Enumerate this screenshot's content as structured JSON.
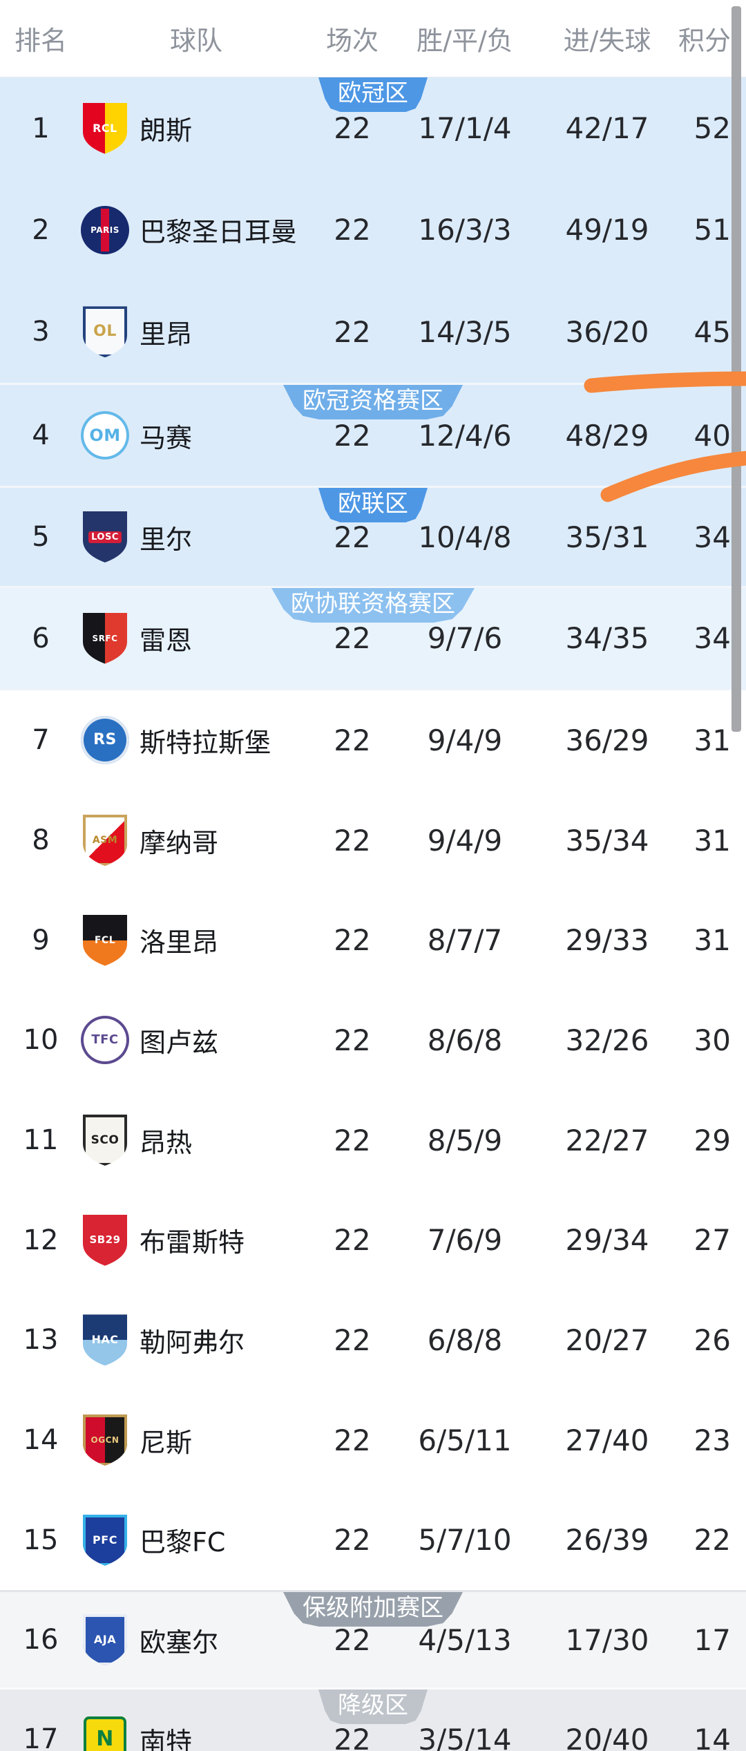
{
  "table": {
    "headers": {
      "rank": "排名",
      "team": "球队",
      "played": "场次",
      "wdl": "胜/平/负",
      "goals": "进/失球",
      "points": "积分"
    },
    "zones": [
      {
        "badge": {
          "label": "欧冠区",
          "color": "#4d97e5"
        },
        "bg": "#dcebfa",
        "divider": null,
        "rows": [
          {
            "rank": "1",
            "team": "朗斯",
            "played": "22",
            "wdl": "17/1/4",
            "goals": "42/17",
            "points": "52",
            "logo": {
              "shape": "shield",
              "split": "h",
              "c1": "#e30520",
              "c2": "#ffd300",
              "label": "RCL",
              "labelColor": "#ffffff",
              "labelSize": 16
            }
          },
          {
            "rank": "2",
            "team": "巴黎圣日耳曼",
            "played": "22",
            "wdl": "16/3/3",
            "goals": "49/19",
            "points": "51",
            "logo": {
              "shape": "circle",
              "c1": "#172a6e",
              "stripe": "#d50a32",
              "label": "PARIS",
              "labelColor": "#ffffff",
              "labelSize": 12
            }
          },
          {
            "rank": "3",
            "team": "里昂",
            "played": "22",
            "wdl": "14/3/5",
            "goals": "36/20",
            "points": "45",
            "logo": {
              "shape": "shield",
              "c1": "#f8f9fb",
              "border": "#23417c",
              "label": "OL",
              "labelColor": "#c9a44c",
              "labelSize": 22
            }
          }
        ]
      },
      {
        "badge": {
          "label": "欧冠资格赛区",
          "color": "#6faee9"
        },
        "bg": "#dcebfa",
        "divider": "#f2f6fa",
        "rows": [
          {
            "rank": "4",
            "team": "马赛",
            "played": "22",
            "wdl": "12/4/6",
            "goals": "48/29",
            "points": "40",
            "logo": {
              "shape": "circle",
              "c1": "#ffffff",
              "border": "#63b9e9",
              "label": "OM",
              "labelColor": "#55b2e6",
              "labelSize": 24
            }
          }
        ]
      },
      {
        "badge": {
          "label": "欧联区",
          "color": "#4d97e5"
        },
        "bg": "#dcebfa",
        "divider": "#f2f6fa",
        "rows": [
          {
            "rank": "5",
            "team": "里尔",
            "played": "22",
            "wdl": "10/4/8",
            "goals": "35/31",
            "points": "34",
            "logo": {
              "shape": "shield",
              "c1": "#23356b",
              "label": "LOSC",
              "labelColor": "#ffffff",
              "labelBg": "#d41d38",
              "labelSize": 13
            }
          }
        ]
      },
      {
        "badge": {
          "label": "欧协联资格赛区",
          "color": "#8cc0ef"
        },
        "bg": "#e9f3fc",
        "divider": "#f2f6fa",
        "rows": [
          {
            "rank": "6",
            "team": "雷恩",
            "played": "22",
            "wdl": "9/7/6",
            "goals": "34/35",
            "points": "34",
            "logo": {
              "shape": "shield",
              "split": "h",
              "c1": "#15151a",
              "c2": "#e03a2f",
              "label": "SRFC",
              "labelColor": "#ffffff",
              "labelSize": 12
            }
          }
        ]
      },
      {
        "badge": null,
        "bg": "#ffffff",
        "divider": "#edf3f9",
        "rows": [
          {
            "rank": "7",
            "team": "斯特拉斯堡",
            "played": "22",
            "wdl": "9/4/9",
            "goals": "36/29",
            "points": "31",
            "logo": {
              "shape": "circle",
              "c1": "#2a70c2",
              "border": "#dde7f3",
              "label": "RS",
              "labelColor": "#ffffff",
              "labelSize": 22
            }
          },
          {
            "rank": "8",
            "team": "摩纳哥",
            "played": "22",
            "wdl": "9/4/9",
            "goals": "35/34",
            "points": "31",
            "logo": {
              "shape": "shield",
              "split": "d",
              "c1": "#ffffff",
              "c2": "#e2101e",
              "border": "#caa45c",
              "label": "ASM",
              "labelColor": "#b98a2e",
              "labelSize": 14
            }
          },
          {
            "rank": "9",
            "team": "洛里昂",
            "played": "22",
            "wdl": "8/7/7",
            "goals": "29/33",
            "points": "31",
            "logo": {
              "shape": "shield",
              "split": "v",
              "c1": "#16161a",
              "c2": "#f0791e",
              "label": "FCL",
              "labelColor": "#ffffff",
              "labelSize": 14
            }
          },
          {
            "rank": "10",
            "team": "图卢兹",
            "played": "22",
            "wdl": "8/6/8",
            "goals": "32/26",
            "points": "30",
            "logo": {
              "shape": "circle",
              "c1": "#ffffff",
              "border": "#5c4a90",
              "label": "TFC",
              "labelColor": "#5c4a90",
              "labelSize": 18
            }
          },
          {
            "rank": "11",
            "team": "昂热",
            "played": "22",
            "wdl": "8/5/9",
            "goals": "22/27",
            "points": "29",
            "logo": {
              "shape": "shield",
              "c1": "#f6f4ee",
              "border": "#2a2a2a",
              "label": "SCO",
              "labelColor": "#1e1e1e",
              "labelSize": 17
            }
          },
          {
            "rank": "12",
            "team": "布雷斯特",
            "played": "22",
            "wdl": "7/6/9",
            "goals": "29/34",
            "points": "27",
            "logo": {
              "shape": "shield",
              "c1": "#d92433",
              "label": "SB29",
              "labelColor": "#ffffff",
              "labelSize": 15
            }
          },
          {
            "rank": "13",
            "team": "勒阿弗尔",
            "played": "22",
            "wdl": "6/8/8",
            "goals": "20/27",
            "points": "26",
            "logo": {
              "shape": "shield",
              "split": "v",
              "c1": "#1c3a74",
              "c2": "#93c6e9",
              "label": "HAC",
              "labelColor": "#ffffff",
              "labelSize": 16
            }
          },
          {
            "rank": "14",
            "team": "尼斯",
            "played": "22",
            "wdl": "6/5/11",
            "goals": "27/40",
            "points": "23",
            "logo": {
              "shape": "shield",
              "split": "h",
              "c1": "#d00c2c",
              "c2": "#191919",
              "border": "#c09a52",
              "label": "OGCN",
              "labelColor": "#e7c77f",
              "labelSize": 12
            }
          },
          {
            "rank": "15",
            "team": "巴黎FC",
            "played": "22",
            "wdl": "5/7/10",
            "goals": "26/39",
            "points": "22",
            "logo": {
              "shape": "shield",
              "c1": "#1c3e9c",
              "border": "#34b2e8",
              "label": "PFC",
              "labelColor": "#ffffff",
              "labelSize": 16
            }
          }
        ]
      },
      {
        "badge": {
          "label": "保级附加赛区",
          "color": "#98a1ab"
        },
        "bg": "#f4f5f7",
        "divider": "#e2e4e8",
        "rows": [
          {
            "rank": "16",
            "team": "欧塞尔",
            "played": "22",
            "wdl": "4/5/13",
            "goals": "17/30",
            "points": "17",
            "logo": {
              "shape": "shield",
              "c1": "#2b55b0",
              "border": "#e8ecf4",
              "label": "AJA",
              "labelColor": "#ffffff",
              "labelSize": 16
            }
          }
        ]
      },
      {
        "badge": {
          "label": "降级区",
          "color": "#bfc4cb"
        },
        "bg": "#e9eaed",
        "divider": "#fbfbfc",
        "rows": [
          {
            "rank": "17",
            "team": "南特",
            "played": "22",
            "wdl": "3/5/14",
            "goals": "20/40",
            "points": "14",
            "logo": {
              "shape": "square",
              "c1": "#f7da0c",
              "border": "#0d8040",
              "label": "N",
              "labelColor": "#0d8040",
              "labelSize": 30
            }
          }
        ]
      }
    ]
  },
  "annotations": {
    "marker_color": "#f6873c",
    "strokes": [
      {
        "name": "underline-after-rank-3"
      },
      {
        "name": "swoosh-after-rank-4"
      }
    ]
  },
  "scrollbar": {
    "color": "#a5a7aa"
  }
}
